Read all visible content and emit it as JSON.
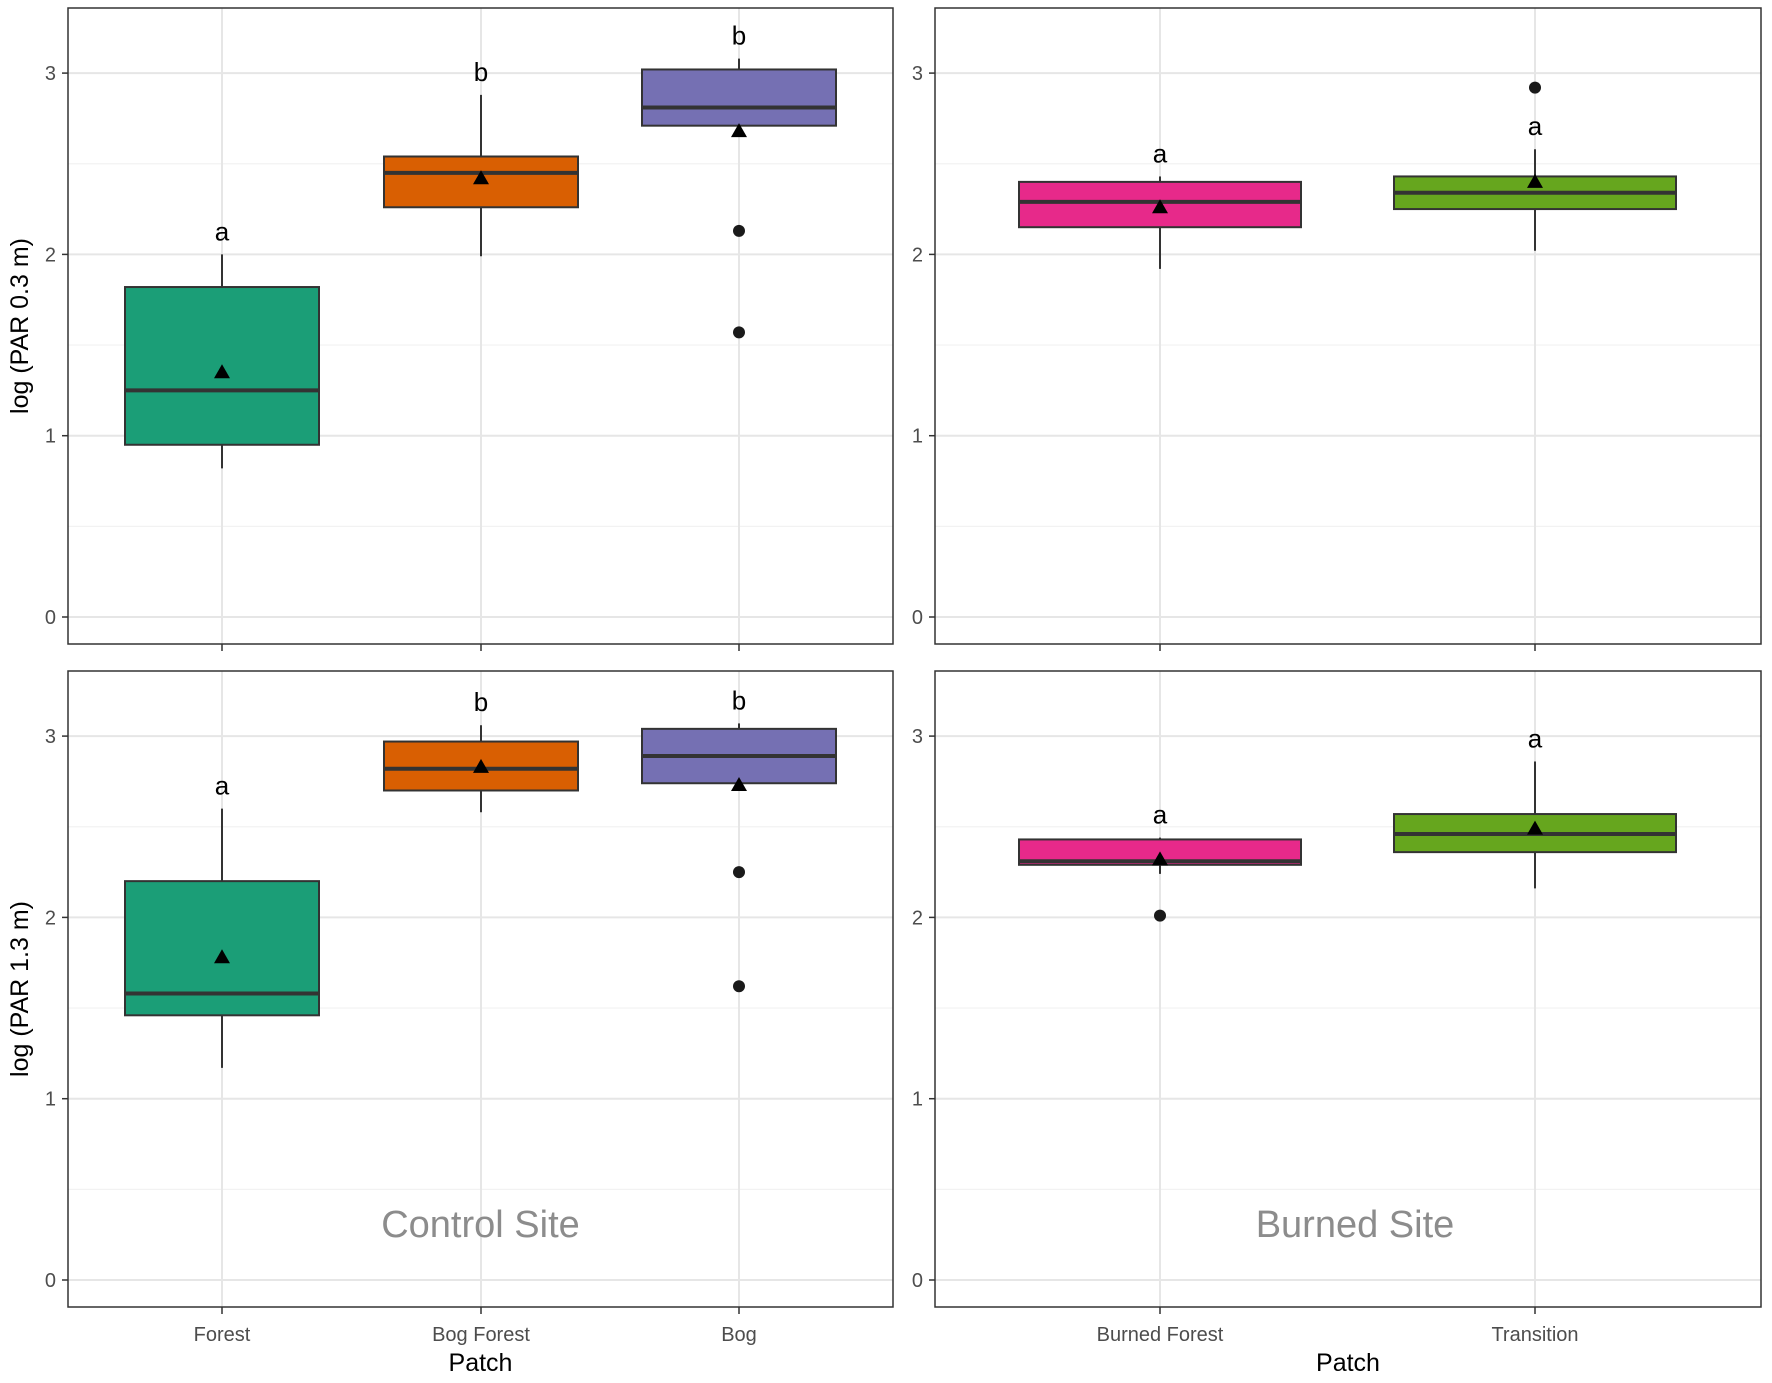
{
  "chart_data": [
    {
      "type": "box",
      "panel": "top-left",
      "site": "Control Site",
      "ylabel": "log (PAR 0.3 m)",
      "xlabel": "",
      "ylim": [
        -0.15,
        3.5
      ],
      "yticks": [
        0,
        1,
        2,
        3
      ],
      "categories": [
        "Forest",
        "Bog Forest",
        "Bog"
      ],
      "boxes": [
        {
          "category": "Forest",
          "color": "#1b9e77",
          "q1": 0.95,
          "median": 1.25,
          "q3": 1.82,
          "whisker_low": 0.82,
          "whisker_high": 2.0,
          "mean": 1.35,
          "outliers": [],
          "letter": "a"
        },
        {
          "category": "Bog Forest",
          "color": "#d95f02",
          "q1": 2.26,
          "median": 2.45,
          "q3": 2.54,
          "whisker_low": 1.99,
          "whisker_high": 2.88,
          "mean": 2.42,
          "outliers": [],
          "letter": "b"
        },
        {
          "category": "Bog",
          "color": "#7570b3",
          "q1": 2.71,
          "median": 2.81,
          "q3": 3.02,
          "whisker_low": 2.71,
          "whisker_high": 3.08,
          "mean": 2.68,
          "outliers": [
            2.13,
            1.57
          ],
          "letter": "b"
        }
      ]
    },
    {
      "type": "box",
      "panel": "top-right",
      "site": "Burned Site",
      "ylabel": "",
      "xlabel": "",
      "ylim": [
        -0.15,
        3.5
      ],
      "yticks": [
        0,
        1,
        2,
        3
      ],
      "categories": [
        "Burned Forest",
        "Transition"
      ],
      "boxes": [
        {
          "category": "Burned Forest",
          "color": "#e7298a",
          "q1": 2.15,
          "median": 2.29,
          "q3": 2.4,
          "whisker_low": 1.92,
          "whisker_high": 2.43,
          "mean": 2.26,
          "outliers": [],
          "letter": "a"
        },
        {
          "category": "Transition",
          "color": "#66a61e",
          "q1": 2.25,
          "median": 2.34,
          "q3": 2.43,
          "whisker_low": 2.02,
          "whisker_high": 2.58,
          "mean": 2.4,
          "outliers": [
            2.92
          ],
          "letter": "a"
        }
      ]
    },
    {
      "type": "box",
      "panel": "bottom-left",
      "site": "Control Site",
      "ylabel": "log (PAR 1.3 m)",
      "xlabel": "Patch",
      "ylim": [
        -0.15,
        3.5
      ],
      "yticks": [
        0,
        1,
        2,
        3
      ],
      "categories": [
        "Forest",
        "Bog Forest",
        "Bog"
      ],
      "boxes": [
        {
          "category": "Forest",
          "color": "#1b9e77",
          "q1": 1.46,
          "median": 1.58,
          "q3": 2.2,
          "whisker_low": 1.17,
          "whisker_high": 2.6,
          "mean": 1.78,
          "outliers": [],
          "letter": "a"
        },
        {
          "category": "Bog Forest",
          "color": "#d95f02",
          "q1": 2.7,
          "median": 2.82,
          "q3": 2.97,
          "whisker_low": 2.58,
          "whisker_high": 3.06,
          "mean": 2.83,
          "outliers": [],
          "letter": "b"
        },
        {
          "category": "Bog",
          "color": "#7570b3",
          "q1": 2.74,
          "median": 2.89,
          "q3": 3.04,
          "whisker_low": 2.74,
          "whisker_high": 3.07,
          "mean": 2.73,
          "outliers": [
            2.25,
            1.62
          ],
          "letter": "b"
        }
      ]
    },
    {
      "type": "box",
      "panel": "bottom-right",
      "site": "Burned Site",
      "ylabel": "",
      "xlabel": "Patch",
      "ylim": [
        -0.15,
        3.5
      ],
      "yticks": [
        0,
        1,
        2,
        3
      ],
      "categories": [
        "Burned Forest",
        "Transition"
      ],
      "boxes": [
        {
          "category": "Burned Forest",
          "color": "#e7298a",
          "q1": 2.29,
          "median": 2.31,
          "q3": 2.43,
          "whisker_low": 2.24,
          "whisker_high": 2.44,
          "mean": 2.32,
          "outliers": [
            2.01
          ],
          "letter": "a"
        },
        {
          "category": "Transition",
          "color": "#66a61e",
          "q1": 2.36,
          "median": 2.46,
          "q3": 2.57,
          "whisker_low": 2.16,
          "whisker_high": 2.86,
          "mean": 2.49,
          "outliers": [],
          "letter": "a"
        }
      ]
    }
  ]
}
